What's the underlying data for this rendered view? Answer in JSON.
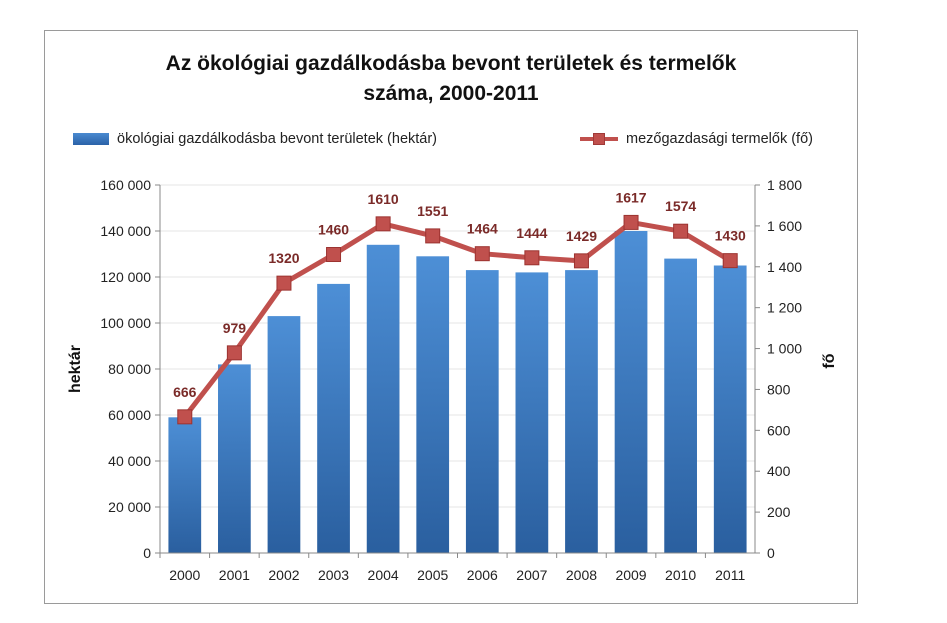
{
  "chart_data": {
    "type": "bar",
    "title_line1": "Az ökológiai gazdálkodásba bevont területek és termelők",
    "title_line2": "száma, 2000-2011",
    "categories": [
      "2000",
      "2001",
      "2002",
      "2003",
      "2004",
      "2005",
      "2006",
      "2007",
      "2008",
      "2009",
      "2010",
      "2011"
    ],
    "series": [
      {
        "name": "ökológiai gazdálkodásba bevont területek (hektár)",
        "type": "bar",
        "axis": "left",
        "color": "#3a76bf",
        "values": [
          59000,
          82000,
          103000,
          117000,
          134000,
          129000,
          123000,
          122000,
          123000,
          140000,
          128000,
          125000
        ]
      },
      {
        "name": "mezőgazdasági termelők (fő)",
        "type": "line",
        "axis": "right",
        "color": "#c0504d",
        "values": [
          666,
          979,
          1320,
          1460,
          1610,
          1551,
          1464,
          1444,
          1429,
          1617,
          1574,
          1430
        ]
      }
    ],
    "ylabel_left": "hektár",
    "ylabel_right": "fő",
    "ylim_left": [
      0,
      160000
    ],
    "ylim_right": [
      0,
      1800
    ],
    "yticks_left": [
      "0",
      "20 000",
      "40 000",
      "60 000",
      "80 000",
      "100 000",
      "120 000",
      "140 000",
      "160 000"
    ],
    "yticks_right": [
      "0",
      "200",
      "400",
      "600",
      "800",
      "1 000",
      "1 200",
      "1 400",
      "1 600",
      "1 800"
    ],
    "data_labels": [
      "666",
      "979",
      "1320",
      "1460",
      "1610",
      "1551",
      "1464",
      "1444",
      "1429",
      "1617",
      "1574",
      "1430"
    ],
    "legend_position": "top",
    "grid": true
  }
}
